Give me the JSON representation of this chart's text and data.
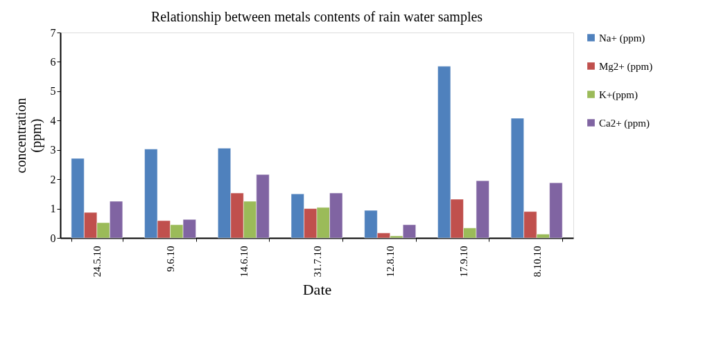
{
  "chart_data": {
    "type": "bar",
    "title": "Relationship between metals contents of rain water samples",
    "xlabel": "Date",
    "ylabel": "concentration (ppm)",
    "categories": [
      "24.5.10",
      "9.6.10",
      "14.6.10",
      "31.7.10",
      "12.8.10",
      "17.9.10",
      "8.10.10"
    ],
    "series": [
      {
        "name": "Na+ (ppm)",
        "color": "#4f81bd",
        "values": [
          2.71,
          3.03,
          3.06,
          1.5,
          0.94,
          5.85,
          4.08
        ]
      },
      {
        "name": "Mg2+ (ppm)",
        "color": "#c0504d",
        "values": [
          0.87,
          0.59,
          1.53,
          1.0,
          0.17,
          1.32,
          0.9
        ]
      },
      {
        "name": "K+(ppm)",
        "color": "#9bbb59",
        "values": [
          0.52,
          0.45,
          1.25,
          1.04,
          0.07,
          0.34,
          0.13
        ]
      },
      {
        "name": "Ca2+ (ppm)",
        "color": "#8064a2",
        "values": [
          1.25,
          0.63,
          2.16,
          1.53,
          0.45,
          1.95,
          1.88
        ]
      }
    ],
    "ylim": [
      0,
      7
    ],
    "yticks": [
      0,
      1,
      2,
      3,
      4,
      5,
      6,
      7
    ],
    "grid": false,
    "legend": "right"
  }
}
